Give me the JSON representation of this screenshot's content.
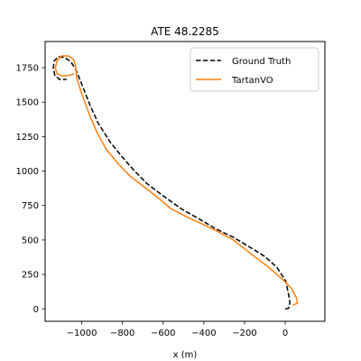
{
  "chart_data": {
    "type": "line",
    "title": "ATE 48.2285",
    "xlabel": "x (m)",
    "ylabel": "",
    "xlim": [
      -1180,
      195
    ],
    "ylim": [
      -90,
      1940
    ],
    "x_ticks": [
      -1000,
      -800,
      -600,
      -400,
      -200,
      0
    ],
    "x_tick_labels": [
      "−1000",
      "−800",
      "−600",
      "−400",
      "−200",
      "0"
    ],
    "y_ticks": [
      0,
      250,
      500,
      750,
      1000,
      1250,
      1500,
      1750
    ],
    "y_tick_labels": [
      "0",
      "250",
      "500",
      "750",
      "1000",
      "1250",
      "1500",
      "1750"
    ],
    "grid": false,
    "legend_position": "upper right",
    "series": [
      {
        "name": "Ground Truth",
        "color": "#000000",
        "style": "dashed",
        "points": [
          [
            0,
            0
          ],
          [
            17,
            5
          ],
          [
            23,
            45
          ],
          [
            17,
            100
          ],
          [
            3,
            200
          ],
          [
            -40,
            300
          ],
          [
            -100,
            380
          ],
          [
            -165,
            440
          ],
          [
            -255,
            520
          ],
          [
            -340,
            580
          ],
          [
            -420,
            650
          ],
          [
            -510,
            725
          ],
          [
            -600,
            820
          ],
          [
            -680,
            910
          ],
          [
            -740,
            1000
          ],
          [
            -800,
            1100
          ],
          [
            -860,
            1210
          ],
          [
            -920,
            1350
          ],
          [
            -960,
            1480
          ],
          [
            -1000,
            1630
          ],
          [
            -1030,
            1740
          ],
          [
            -1055,
            1795
          ],
          [
            -1085,
            1825
          ],
          [
            -1115,
            1830
          ],
          [
            -1135,
            1800
          ],
          [
            -1140,
            1745
          ],
          [
            -1132,
            1695
          ],
          [
            -1110,
            1665
          ],
          [
            -1075,
            1665
          ]
        ]
      },
      {
        "name": "TartanVO",
        "color": "#ff7f0e",
        "style": "solid",
        "points": [
          [
            40,
            30
          ],
          [
            60,
            40
          ],
          [
            55,
            80
          ],
          [
            30,
            150
          ],
          [
            -10,
            210
          ],
          [
            -80,
            300
          ],
          [
            -160,
            390
          ],
          [
            -255,
            500
          ],
          [
            -330,
            560
          ],
          [
            -400,
            610
          ],
          [
            -480,
            665
          ],
          [
            -560,
            725
          ],
          [
            -620,
            800
          ],
          [
            -680,
            870
          ],
          [
            -760,
            960
          ],
          [
            -820,
            1050
          ],
          [
            -880,
            1160
          ],
          [
            -925,
            1280
          ],
          [
            -965,
            1420
          ],
          [
            -1000,
            1560
          ],
          [
            -1025,
            1680
          ],
          [
            -1030,
            1760
          ],
          [
            -1040,
            1810
          ],
          [
            -1065,
            1835
          ],
          [
            -1100,
            1835
          ],
          [
            -1122,
            1800
          ],
          [
            -1130,
            1745
          ],
          [
            -1120,
            1705
          ],
          [
            -1095,
            1690
          ],
          [
            -1060,
            1695
          ],
          [
            -1040,
            1705
          ]
        ]
      }
    ]
  }
}
